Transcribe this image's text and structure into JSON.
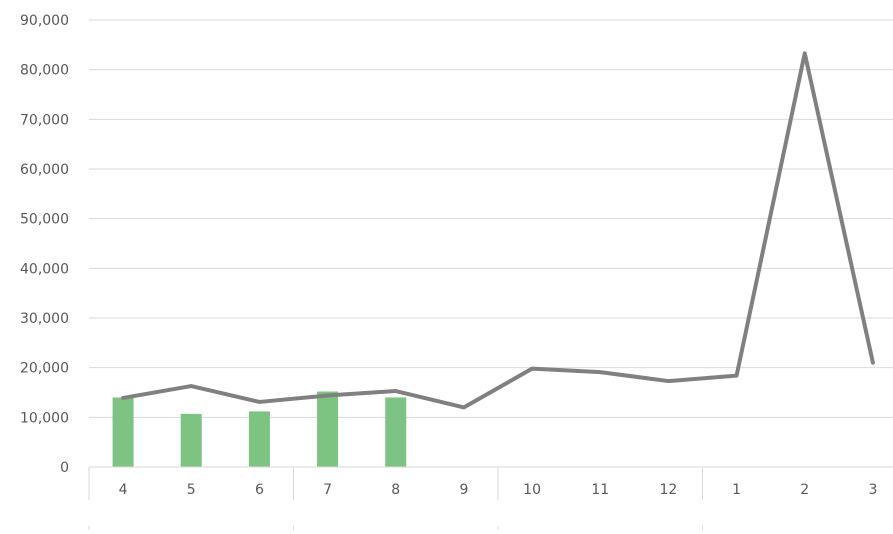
{
  "chart_data": {
    "type": "bar",
    "categories": [
      "4",
      "5",
      "6",
      "7",
      "8",
      "9",
      "10",
      "11",
      "12",
      "1",
      "2",
      "3"
    ],
    "series": [
      {
        "type": "bar",
        "values": [
          14000,
          10700,
          11200,
          15200,
          14000,
          null,
          null,
          null,
          null,
          null,
          null,
          null
        ],
        "color": "#7dc483"
      },
      {
        "type": "line",
        "values": [
          13900,
          16300,
          13100,
          14400,
          15300,
          12000,
          19800,
          19100,
          17300,
          18400,
          83300,
          21000
        ],
        "color": "#808080"
      }
    ],
    "y_ticks": [
      "0",
      "10,000",
      "20,000",
      "30,000",
      "40,000",
      "50,000",
      "60,000",
      "70,000",
      "80,000",
      "90,000"
    ],
    "ylim": [
      0,
      90000
    ],
    "grid": true,
    "title": "",
    "xlabel": "",
    "ylabel": ""
  }
}
